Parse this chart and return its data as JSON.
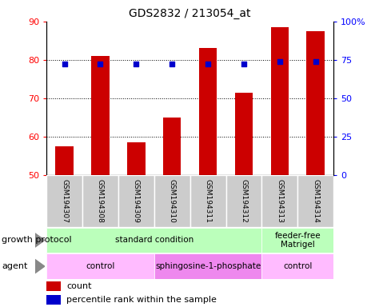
{
  "title": "GDS2832 / 213054_at",
  "samples": [
    "GSM194307",
    "GSM194308",
    "GSM194309",
    "GSM194310",
    "GSM194311",
    "GSM194312",
    "GSM194313",
    "GSM194314"
  ],
  "bar_values": [
    57.5,
    81.0,
    58.5,
    65.0,
    83.0,
    71.5,
    88.5,
    87.5
  ],
  "dot_values_left": [
    79.0,
    79.0,
    79.0,
    79.0,
    79.0,
    79.0,
    79.5,
    79.5
  ],
  "bar_color": "#cc0000",
  "dot_color": "#0000cc",
  "ylim_left": [
    50,
    90
  ],
  "ylim_right": [
    0,
    100
  ],
  "yticks_left": [
    50,
    60,
    70,
    80,
    90
  ],
  "yticks_right": [
    0,
    25,
    50,
    75,
    100
  ],
  "ytick_labels_right": [
    "0",
    "25",
    "50",
    "75",
    "100%"
  ],
  "grid_values": [
    60,
    70,
    80
  ],
  "growth_protocol_groups": [
    {
      "label": "standard condition",
      "start": 0,
      "end": 6,
      "color": "#bbffbb"
    },
    {
      "label": "feeder-free\nMatrigel",
      "start": 6,
      "end": 8,
      "color": "#bbffbb"
    }
  ],
  "agent_groups": [
    {
      "label": "control",
      "start": 0,
      "end": 3,
      "color": "#ffbbff"
    },
    {
      "label": "sphingosine-1-phosphate",
      "start": 3,
      "end": 6,
      "color": "#ee88ee"
    },
    {
      "label": "control",
      "start": 6,
      "end": 8,
      "color": "#ffbbff"
    }
  ],
  "background_color": "#ffffff",
  "sample_box_color": "#cccccc",
  "arrow_color": "#888888"
}
